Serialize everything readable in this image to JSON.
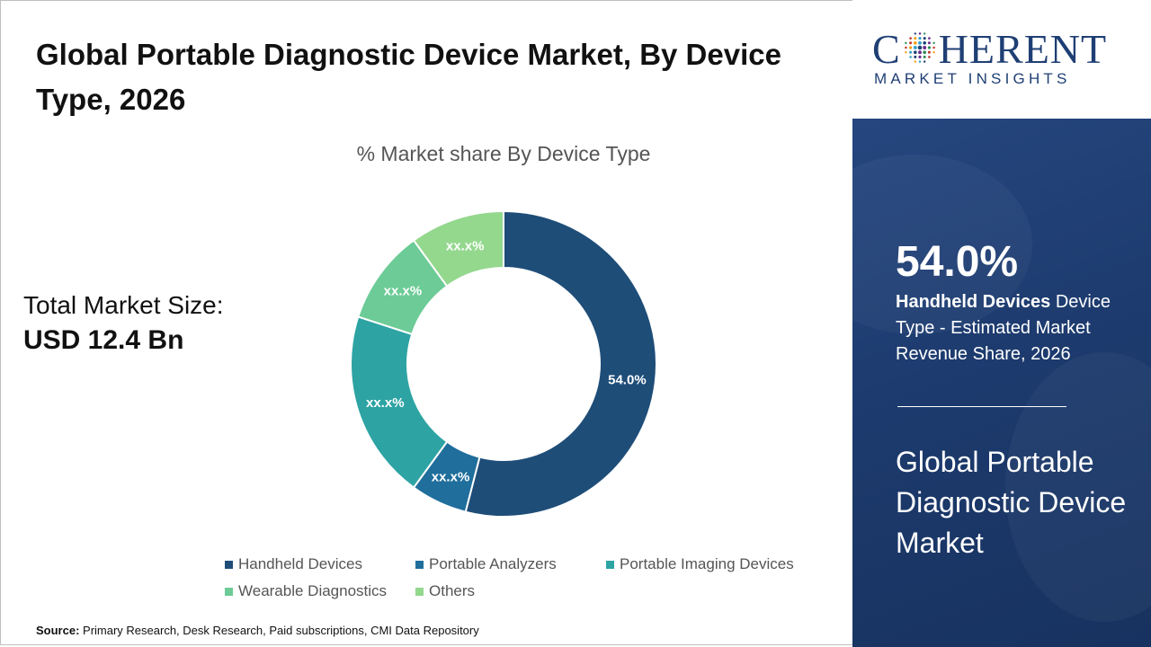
{
  "title": "Global Portable Diagnostic Device Market, By Device Type, 2026",
  "total_market": {
    "label": "Total Market Size:",
    "value": "USD 12.4 Bn"
  },
  "source": {
    "label": "Source:",
    "text": "Primary Research, Desk Research, Paid subscriptions, CMI Data Repository"
  },
  "logo": {
    "word_pre": "C",
    "word_post": "HERENT",
    "sub": "MARKET INSIGHTS",
    "colors": [
      "#1f3f74",
      "#6a2c91",
      "#2e8b57",
      "#c0392b",
      "#f39c12",
      "#3aa0c8"
    ]
  },
  "highlight": {
    "value": "54.0%",
    "segment": "Handheld Devices",
    "rest": " Device Type - Estimated Market Revenue Share, 2026",
    "market_name": "Global Portable Diagnostic Device Market"
  },
  "chart_data": {
    "type": "pie",
    "donut": true,
    "title": "% Market share By Device Type",
    "legend_position": "bottom",
    "categories": [
      "Handheld Devices",
      "Portable Analyzers",
      "Portable Imaging Devices",
      "Wearable Diagnostics",
      "Others"
    ],
    "values": [
      54.0,
      6.0,
      20.0,
      10.0,
      10.0
    ],
    "labels": [
      "54.0%",
      "xx.x%",
      "xx.x%",
      "xx.x%",
      "xx.x%"
    ],
    "colors": [
      "#1e4d78",
      "#1f6e9c",
      "#2ea3a3",
      "#6ccb96",
      "#94d88e"
    ]
  }
}
